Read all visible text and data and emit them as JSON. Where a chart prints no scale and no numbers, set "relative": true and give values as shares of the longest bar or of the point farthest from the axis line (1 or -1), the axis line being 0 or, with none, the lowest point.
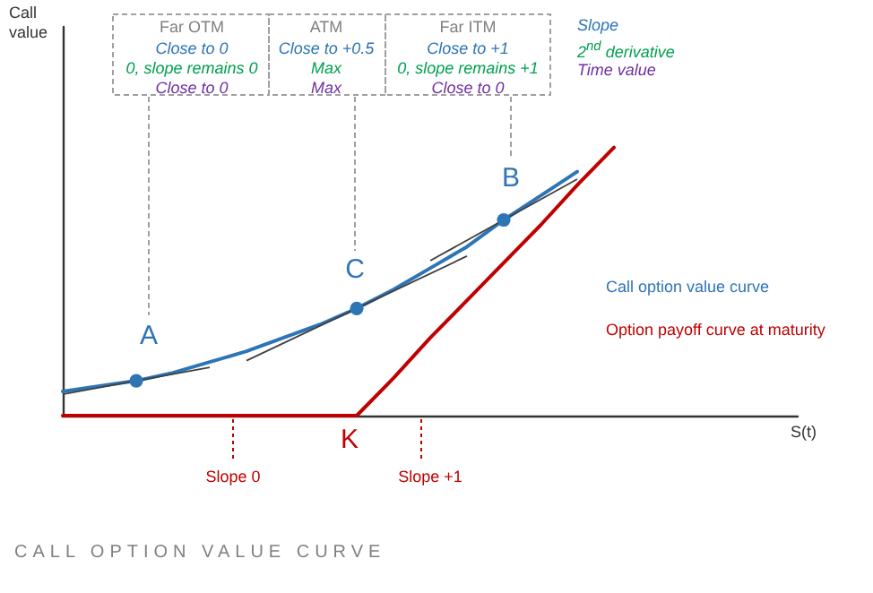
{
  "chart_data": {
    "type": "line",
    "relative": true,
    "title": "CALL OPTION VALUE CURVE",
    "xlabel": "S(t)",
    "legend": false,
    "marker": "none",
    "categories": [
      null,
      null,
      null,
      null,
      null,
      null,
      null,
      null,
      null,
      null,
      null,
      null,
      null,
      null,
      null,
      null,
      null,
      null,
      null,
      null,
      null
    ],
    "series": [
      {
        "name": "Call option value curve",
        "color": "#2e75b6",
        "values": [
          0.09,
          0.11,
          0.13,
          0.16,
          0.2,
          0.24,
          0.29,
          0.34,
          0.4,
          0.47,
          0.55,
          0.63,
          0.73,
          0.82,
          0.91,
          null,
          null,
          null,
          null,
          null,
          null
        ]
      },
      {
        "name": "Option payoff curve at maturity",
        "color": "#c00000",
        "values": [
          0,
          0,
          0,
          0,
          0,
          0,
          0,
          0,
          0,
          0.14,
          0.29,
          0.43,
          0.57,
          0.71,
          0.86,
          1,
          null,
          null,
          null,
          null,
          null
        ]
      }
    ],
    "annotations": [
      "Far OTM",
      "Close to 0",
      "0, slope remains 0",
      "Close to 0",
      "ATM",
      "Close to +0.5",
      "Max",
      "Max",
      "Far ITM",
      "Close to +1",
      "0, slope remains +1",
      "Close to 0",
      "Slope",
      "2$^{nd}$ derivative",
      "Time value",
      "A",
      "C",
      "B",
      "K",
      "Slope 0",
      "Slope +1",
      "Call value"
    ]
  }
}
